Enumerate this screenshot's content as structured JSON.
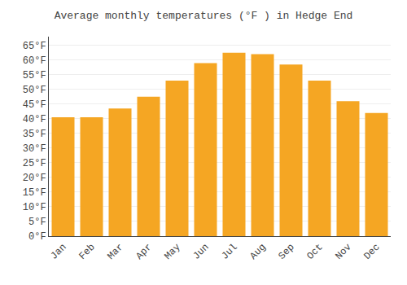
{
  "chart_data": {
    "type": "bar",
    "title": "Average monthly temperatures (°F ) in Hedge End",
    "categories": [
      "Jan",
      "Feb",
      "Mar",
      "Apr",
      "May",
      "Jun",
      "Jul",
      "Aug",
      "Sep",
      "Oct",
      "Nov",
      "Dec"
    ],
    "values": [
      40.5,
      40.5,
      43.5,
      47.5,
      53.0,
      59.0,
      62.5,
      62.0,
      58.5,
      53.0,
      46.0,
      42.0
    ],
    "color": "#F5A623",
    "ylim": [
      0,
      68
    ],
    "yticks": [
      {
        "value": 0,
        "label": "0°F"
      },
      {
        "value": 5,
        "label": "5°F"
      },
      {
        "value": 10,
        "label": "10°F"
      },
      {
        "value": 15,
        "label": "15°F"
      },
      {
        "value": 20,
        "label": "20°F"
      },
      {
        "value": 25,
        "label": "25°F"
      },
      {
        "value": 30,
        "label": "30°F"
      },
      {
        "value": 35,
        "label": "35°F"
      },
      {
        "value": 40,
        "label": "40°F"
      },
      {
        "value": 45,
        "label": "45°F"
      },
      {
        "value": 50,
        "label": "50°F"
      },
      {
        "value": 55,
        "label": "55°F"
      },
      {
        "value": 60,
        "label": "60°F"
      },
      {
        "value": 65,
        "label": "65°F"
      }
    ],
    "grid": true
  }
}
